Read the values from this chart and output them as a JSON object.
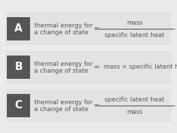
{
  "background_color": "#ebebeb",
  "row_bg_color": "#e3e3e3",
  "label_bg_color": "#555555",
  "label_text_color": "#ffffff",
  "text_color": "#555555",
  "labels": [
    "A",
    "B",
    "C"
  ],
  "rows": [
    {
      "left_text_line1": "thermal energy for",
      "left_text_line2": "a change of state",
      "eq": "=",
      "numerator": "mass",
      "denominator": "specific latent heat",
      "fraction": true
    },
    {
      "left_text_line1": "thermal energy for",
      "left_text_line2": "a change of state",
      "eq": "=",
      "right_text": "mass × specific latent heat",
      "fraction": false
    },
    {
      "left_text_line1": "thermal energy for",
      "left_text_line2": "a change of state",
      "eq": "=",
      "numerator": "specific latent heat",
      "denominator": "mass",
      "fraction": true
    }
  ],
  "fig_width": 2.59,
  "fig_height": 1.94,
  "dpi": 100
}
